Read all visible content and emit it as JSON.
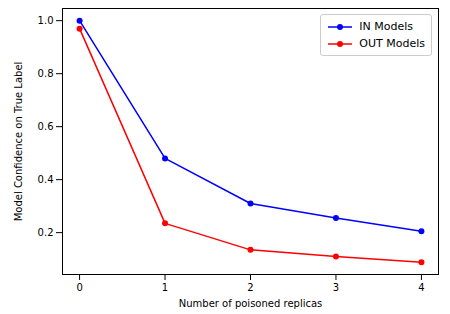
{
  "chart_data": {
    "type": "line",
    "x_label": "Number of poisoned replicas",
    "y_label": "Model Confidence on True Label",
    "x": [
      0,
      1,
      2,
      3,
      4
    ],
    "series": [
      {
        "name": "IN Models",
        "color": "#0000ff",
        "marker": "circle",
        "line_style": "solid",
        "values": [
          1.0,
          0.48,
          0.31,
          0.255,
          0.205
        ]
      },
      {
        "name": "OUT Models",
        "color": "#ff0000",
        "marker": "circle",
        "line_style": "solid",
        "values": [
          0.97,
          0.235,
          0.135,
          0.11,
          0.088
        ]
      }
    ],
    "xlim": [
      -0.2,
      4.2
    ],
    "xticks": [
      0,
      1,
      2,
      3,
      4
    ],
    "ylim": [
      0.042,
      1.046
    ],
    "yticks": [
      0.2,
      0.4,
      0.6,
      0.8,
      {
        "value": 1,
        "label": "1.0"
      }
    ],
    "grid": false,
    "legend": "upper right"
  }
}
